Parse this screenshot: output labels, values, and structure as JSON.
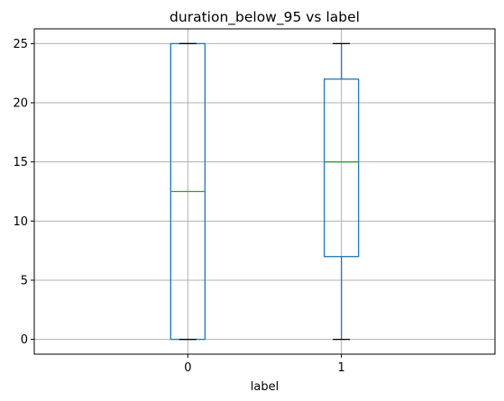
{
  "chart_data": {
    "type": "boxplot",
    "title": "duration_below_95 vs label",
    "xlabel": "label",
    "ylabel": "",
    "categories": [
      "0",
      "1"
    ],
    "ylim": [
      -1.25,
      26.25
    ],
    "yticks": [
      0,
      5,
      10,
      15,
      20,
      25
    ],
    "grid": true,
    "boxes": [
      {
        "category": "0",
        "whisker_low": 0,
        "q1": 0,
        "median": 12.5,
        "q3": 25,
        "whisker_high": 25
      },
      {
        "category": "1",
        "whisker_low": 0,
        "q1": 7,
        "median": 15,
        "q3": 22,
        "whisker_high": 25
      }
    ],
    "colors": {
      "box": "#1f77b4",
      "median": "#2ca02c",
      "whisker_cap": "#000000",
      "grid": "#b0b0b0"
    }
  }
}
